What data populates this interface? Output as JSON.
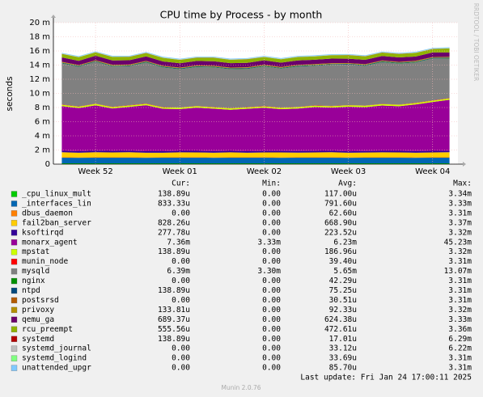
{
  "chart_data": {
    "type": "stacked_area",
    "title": "CPU time by Process - by month",
    "y_label": "seconds",
    "side_text": "RRDTOOL / TOBI OETIKER",
    "categories": [
      null,
      null,
      "Week 52",
      null,
      null,
      null,
      null,
      "Week 01",
      null,
      null,
      null,
      null,
      "Week 02",
      null,
      null,
      null,
      null,
      "Week 03",
      null,
      null,
      null,
      null,
      "Week 04",
      null
    ],
    "ylim": [
      0,
      20
    ],
    "yticks": [
      0,
      {
        "value": 2,
        "label": "2 m"
      },
      {
        "value": 4,
        "label": "4 m"
      },
      {
        "value": 6,
        "label": "6 m"
      },
      {
        "value": 8,
        "label": "8 m"
      },
      {
        "value": 10,
        "label": "10 m"
      },
      {
        "value": 12,
        "label": "12 m"
      },
      {
        "value": 14,
        "label": "14 m"
      },
      {
        "value": 16,
        "label": "16 m"
      },
      {
        "value": 18,
        "label": "18 m"
      },
      {
        "value": 20,
        "label": "20 m"
      }
    ],
    "grid": true,
    "legend_columns": [
      "Cur:",
      "Min:",
      "Avg:",
      "Max:"
    ],
    "series": [
      {
        "name": "_cpu_linux_mult",
        "color": "#00CC00",
        "stats": [
          "138.89u",
          "0.00",
          "117.00u",
          "3.34m"
        ],
        "values": [
          0.12,
          0.12,
          0.11,
          0.12,
          0.12,
          0.12,
          0.11,
          0.12,
          0.12,
          0.12,
          0.11,
          0.12,
          0.12,
          0.12,
          0.11,
          0.12,
          0.12,
          0.12,
          0.11,
          0.12,
          0.12,
          0.12,
          0.11,
          0.12
        ]
      },
      {
        "name": "_interfaces_lin",
        "color": "#0066B3",
        "stats": [
          "833.33u",
          "0.00",
          "791.60u",
          "3.33m"
        ],
        "values": [
          0.8,
          0.78,
          0.8,
          0.79,
          0.8,
          0.78,
          0.8,
          0.79,
          0.8,
          0.78,
          0.8,
          0.79,
          0.8,
          0.78,
          0.8,
          0.79,
          0.8,
          0.78,
          0.8,
          0.79,
          0.8,
          0.78,
          0.8,
          0.79
        ]
      },
      {
        "name": "dbus_daemon",
        "color": "#FF8000",
        "stats": [
          "0.00",
          "0.00",
          "62.60u",
          "3.31m"
        ],
        "values": [
          0.06,
          0.06,
          0.06,
          0.06,
          0.06,
          0.06,
          0.06,
          0.06,
          0.06,
          0.06,
          0.06,
          0.06,
          0.06,
          0.06,
          0.06,
          0.06,
          0.06,
          0.06,
          0.06,
          0.06,
          0.06,
          0.06,
          0.06,
          0.06
        ]
      },
      {
        "name": "fail2ban_server",
        "color": "#FFCC00",
        "stats": [
          "828.26u",
          "0.00",
          "668.90u",
          "3.37m"
        ],
        "values": [
          0.7,
          0.65,
          0.72,
          0.68,
          0.7,
          0.66,
          0.64,
          0.7,
          0.68,
          0.66,
          0.7,
          0.65,
          0.67,
          0.69,
          0.66,
          0.68,
          0.7,
          0.65,
          0.67,
          0.7,
          0.68,
          0.66,
          0.69,
          0.72
        ]
      },
      {
        "name": "ksoftirqd",
        "color": "#330099",
        "stats": [
          "277.78u",
          "0.00",
          "223.52u",
          "3.32m"
        ],
        "values": [
          0.22,
          0.22,
          0.23,
          0.22,
          0.22,
          0.21,
          0.22,
          0.22,
          0.23,
          0.22,
          0.22,
          0.21,
          0.22,
          0.22,
          0.23,
          0.22,
          0.22,
          0.21,
          0.22,
          0.22,
          0.23,
          0.22,
          0.22,
          0.21
        ]
      },
      {
        "name": "monarx_agent",
        "color": "#990099",
        "stats": [
          "7.36m",
          "3.33m",
          "6.23m",
          "45.23m"
        ],
        "values": [
          6.3,
          6.1,
          6.4,
          6.0,
          6.2,
          6.5,
          6.0,
          5.9,
          6.1,
          6.0,
          5.8,
          6.0,
          6.1,
          5.9,
          6.0,
          6.2,
          6.1,
          6.3,
          6.2,
          6.4,
          6.3,
          6.6,
          6.9,
          7.2
        ]
      },
      {
        "name": "mpstat",
        "color": "#CCFF00",
        "stats": [
          "138.89u",
          "0.00",
          "186.96u",
          "3.32m"
        ],
        "values": [
          0.19,
          0.19,
          0.19,
          0.19,
          0.19,
          0.19,
          0.19,
          0.19,
          0.19,
          0.19,
          0.19,
          0.19,
          0.19,
          0.19,
          0.19,
          0.19,
          0.19,
          0.19,
          0.19,
          0.19,
          0.19,
          0.19,
          0.19,
          0.19
        ]
      },
      {
        "name": "munin_node",
        "color": "#FF0000",
        "stats": [
          "0.00",
          "0.00",
          "39.40u",
          "3.31m"
        ],
        "values": [
          0.04,
          0.04,
          0.04,
          0.04,
          0.04,
          0.04,
          0.04,
          0.04,
          0.04,
          0.04,
          0.04,
          0.04,
          0.04,
          0.04,
          0.04,
          0.04,
          0.04,
          0.04,
          0.04,
          0.04,
          0.04,
          0.04,
          0.04,
          0.04
        ]
      },
      {
        "name": "mysqld",
        "color": "#808080",
        "stats": [
          "6.39m",
          "3.30m",
          "5.65m",
          "13.07m"
        ],
        "values": [
          5.8,
          5.6,
          5.9,
          5.7,
          5.5,
          5.8,
          5.6,
          5.4,
          5.5,
          5.6,
          5.5,
          5.4,
          5.6,
          5.5,
          5.7,
          5.6,
          5.8,
          5.7,
          5.6,
          5.9,
          5.8,
          5.7,
          5.9,
          5.6
        ]
      },
      {
        "name": "nginx",
        "color": "#008F00",
        "stats": [
          "0.00",
          "0.00",
          "42.29u",
          "3.31m"
        ],
        "values": [
          0.04,
          0.04,
          0.04,
          0.04,
          0.04,
          0.04,
          0.04,
          0.04,
          0.04,
          0.04,
          0.04,
          0.04,
          0.04,
          0.04,
          0.04,
          0.04,
          0.04,
          0.04,
          0.04,
          0.04,
          0.04,
          0.04,
          0.04,
          0.04
        ]
      },
      {
        "name": "ntpd",
        "color": "#00487D",
        "stats": [
          "138.89u",
          "0.00",
          "75.25u",
          "3.31m"
        ],
        "values": [
          0.08,
          0.08,
          0.08,
          0.08,
          0.08,
          0.08,
          0.08,
          0.08,
          0.08,
          0.08,
          0.08,
          0.08,
          0.08,
          0.08,
          0.08,
          0.08,
          0.08,
          0.08,
          0.08,
          0.08,
          0.08,
          0.08,
          0.08,
          0.08
        ]
      },
      {
        "name": "postsrsd",
        "color": "#B35A00",
        "stats": [
          "0.00",
          "0.00",
          "30.51u",
          "3.31m"
        ],
        "values": [
          0.03,
          0.03,
          0.03,
          0.03,
          0.03,
          0.03,
          0.03,
          0.03,
          0.03,
          0.03,
          0.03,
          0.03,
          0.03,
          0.03,
          0.03,
          0.03,
          0.03,
          0.03,
          0.03,
          0.03,
          0.03,
          0.03,
          0.03,
          0.03
        ]
      },
      {
        "name": "privoxy",
        "color": "#B38F00",
        "stats": [
          "133.81u",
          "0.00",
          "92.33u",
          "3.32m"
        ],
        "values": [
          0.09,
          0.09,
          0.09,
          0.09,
          0.09,
          0.09,
          0.09,
          0.09,
          0.09,
          0.09,
          0.09,
          0.09,
          0.09,
          0.09,
          0.09,
          0.09,
          0.09,
          0.09,
          0.09,
          0.09,
          0.09,
          0.09,
          0.09,
          0.09
        ]
      },
      {
        "name": "qemu_ga",
        "color": "#6B006B",
        "stats": [
          "689.37u",
          "0.00",
          "624.38u",
          "3.33m"
        ],
        "values": [
          0.62,
          0.6,
          0.64,
          0.62,
          0.61,
          0.63,
          0.62,
          0.6,
          0.62,
          0.64,
          0.61,
          0.62,
          0.63,
          0.6,
          0.62,
          0.62,
          0.64,
          0.61,
          0.62,
          0.63,
          0.62,
          0.6,
          0.64,
          0.62
        ]
      },
      {
        "name": "rcu_preempt",
        "color": "#8FB300",
        "stats": [
          "555.56u",
          "0.00",
          "472.61u",
          "3.36m"
        ],
        "values": [
          0.47,
          0.5,
          0.45,
          0.48,
          0.47,
          0.46,
          0.49,
          0.47,
          0.45,
          0.48,
          0.47,
          0.5,
          0.46,
          0.47,
          0.48,
          0.45,
          0.47,
          0.49,
          0.47,
          0.46,
          0.48,
          0.5,
          0.47,
          0.55
        ]
      },
      {
        "name": "systemd",
        "color": "#B30000",
        "stats": [
          "138.89u",
          "0.00",
          "17.01u",
          "6.29m"
        ],
        "values": [
          0.02,
          0.02,
          0.02,
          0.02,
          0.02,
          0.02,
          0.02,
          0.02,
          0.02,
          0.02,
          0.02,
          0.02,
          0.02,
          0.02,
          0.02,
          0.02,
          0.02,
          0.02,
          0.02,
          0.02,
          0.02,
          0.02,
          0.02,
          0.02
        ]
      },
      {
        "name": "systemd_journal",
        "color": "#BEBEBE",
        "stats": [
          "0.00",
          "0.00",
          "33.12u",
          "6.22m"
        ],
        "values": [
          0.03,
          0.03,
          0.03,
          0.03,
          0.03,
          0.03,
          0.03,
          0.03,
          0.03,
          0.03,
          0.03,
          0.03,
          0.03,
          0.03,
          0.03,
          0.03,
          0.03,
          0.03,
          0.03,
          0.03,
          0.03,
          0.03,
          0.03,
          0.03
        ]
      },
      {
        "name": "systemd_logind",
        "color": "#80FF80",
        "stats": [
          "0.00",
          "0.00",
          "33.69u",
          "3.31m"
        ],
        "values": [
          0.03,
          0.03,
          0.03,
          0.03,
          0.03,
          0.03,
          0.03,
          0.03,
          0.03,
          0.03,
          0.03,
          0.03,
          0.03,
          0.03,
          0.03,
          0.03,
          0.03,
          0.03,
          0.03,
          0.03,
          0.03,
          0.03,
          0.03,
          0.03
        ]
      },
      {
        "name": "unattended_upgr",
        "color": "#80C9FF",
        "stats": [
          "0.00",
          "0.00",
          "85.70u",
          "3.31m"
        ],
        "values": [
          0.09,
          0.09,
          0.09,
          0.09,
          0.09,
          0.09,
          0.09,
          0.09,
          0.09,
          0.09,
          0.09,
          0.09,
          0.09,
          0.09,
          0.09,
          0.09,
          0.09,
          0.09,
          0.09,
          0.09,
          0.09,
          0.09,
          0.09,
          0.09
        ]
      }
    ],
    "last_update": "Last update: Fri Jan 24 17:00:11 2025",
    "footer": "Munin 2.0.76"
  }
}
